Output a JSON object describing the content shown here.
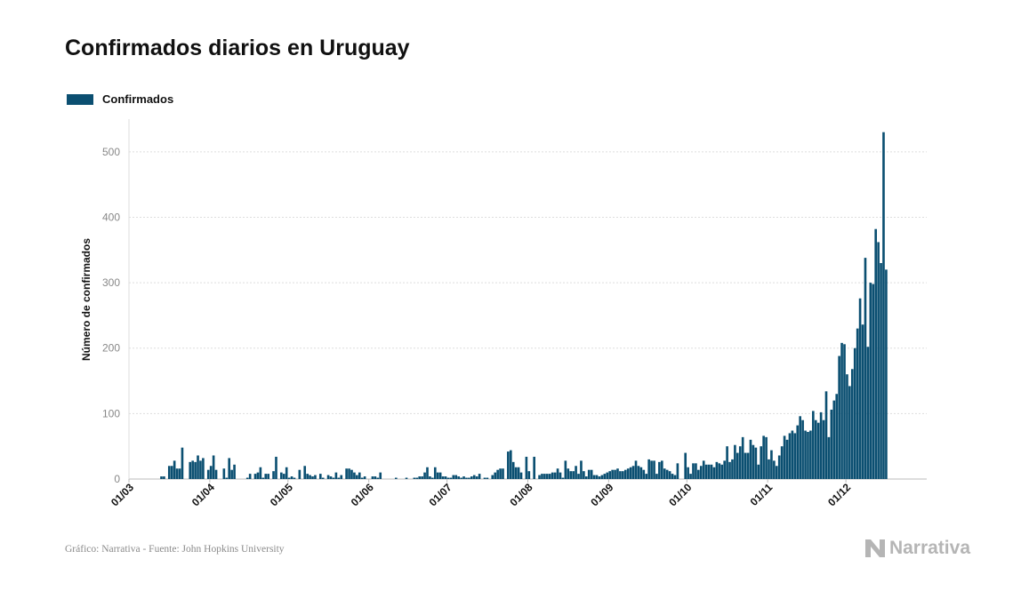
{
  "title": "Confirmados diarios en Uruguay",
  "footer": "Gráfico: Narrativa - Fuente: John Hopkins University",
  "brand": "Narrativa",
  "colors": {
    "bar": "#0b4f71",
    "grid": "#dddddd",
    "axis": "#bbbbbb",
    "brand": "#b5b5b5"
  },
  "chart_data": {
    "type": "bar",
    "ylabel": "Número de confirmados",
    "ylim": [
      0,
      550
    ],
    "yticks": [
      0,
      100,
      200,
      300,
      400,
      500
    ],
    "grid": true,
    "legend_position": "top-left",
    "x_start": "2020-03-01",
    "x_end": "2020-12-31",
    "xtick_dates": [
      "2020-03-01",
      "2020-04-01",
      "2020-05-01",
      "2020-06-01",
      "2020-07-01",
      "2020-08-01",
      "2020-09-01",
      "2020-10-01",
      "2020-11-01",
      "2020-12-01"
    ],
    "xtick_labels": [
      "01/03",
      "01/04",
      "01/05",
      "01/06",
      "01/07",
      "01/08",
      "01/09",
      "01/10",
      "01/11",
      "01/12"
    ],
    "series": [
      {
        "name": "Confirmados",
        "start_date": "2020-03-13",
        "values": [
          4,
          4,
          0,
          20,
          20,
          28,
          16,
          16,
          48,
          0,
          0,
          26,
          28,
          26,
          36,
          28,
          32,
          0,
          14,
          20,
          36,
          14,
          0,
          0,
          16,
          2,
          32,
          14,
          22,
          0,
          0,
          0,
          0,
          2,
          8,
          0,
          8,
          10,
          18,
          2,
          8,
          8,
          0,
          12,
          34,
          0,
          10,
          8,
          18,
          2,
          4,
          2,
          0,
          14,
          0,
          20,
          8,
          6,
          4,
          6,
          0,
          8,
          2,
          0,
          6,
          4,
          2,
          10,
          2,
          6,
          0,
          16,
          16,
          14,
          10,
          6,
          10,
          2,
          4,
          0,
          0,
          4,
          4,
          2,
          10,
          0,
          0,
          0,
          0,
          0,
          2,
          0,
          0,
          0,
          2,
          0,
          0,
          2,
          2,
          4,
          4,
          10,
          18,
          4,
          2,
          18,
          10,
          10,
          4,
          4,
          2,
          2,
          6,
          6,
          4,
          2,
          4,
          2,
          2,
          4,
          6,
          4,
          8,
          0,
          2,
          2,
          0,
          6,
          10,
          14,
          16,
          16,
          0,
          42,
          44,
          26,
          18,
          18,
          10,
          0,
          34,
          12,
          0,
          34,
          0,
          6,
          8,
          8,
          8,
          8,
          10,
          10,
          16,
          10,
          2,
          28,
          16,
          12,
          12,
          20,
          8,
          28,
          12,
          4,
          14,
          14,
          6,
          6,
          4,
          6,
          8,
          10,
          12,
          14,
          14,
          16,
          12,
          12,
          14,
          16,
          18,
          20,
          28,
          20,
          18,
          14,
          8,
          30,
          28,
          28,
          8,
          26,
          28,
          16,
          14,
          12,
          8,
          6,
          24,
          0,
          0,
          40,
          18,
          8,
          24,
          24,
          14,
          20,
          28,
          22,
          22,
          22,
          18,
          26,
          24,
          22,
          28,
          50,
          26,
          30,
          52,
          40,
          50,
          64,
          40,
          40,
          60,
          52,
          48,
          22,
          50,
          66,
          64,
          30,
          44,
          28,
          20,
          36,
          50,
          66,
          60,
          70,
          74,
          70,
          82,
          96,
          90,
          74,
          72,
          74,
          104,
          90,
          86,
          102,
          90,
          134,
          64,
          106,
          120,
          130,
          188,
          208,
          206,
          160,
          142,
          168,
          200,
          230,
          276,
          236,
          338,
          202,
          300,
          298,
          382,
          362,
          330,
          530,
          320
        ]
      }
    ]
  }
}
